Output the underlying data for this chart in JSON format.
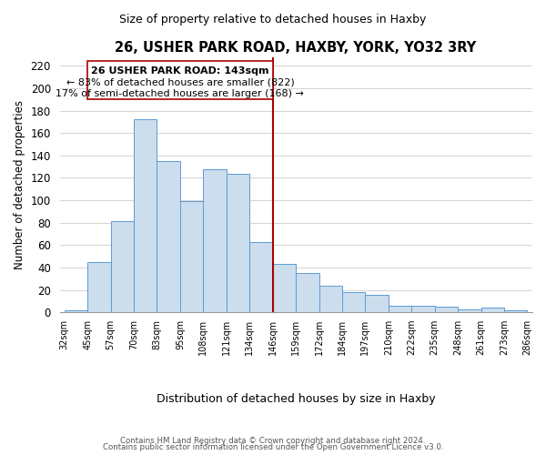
{
  "title": "26, USHER PARK ROAD, HAXBY, YORK, YO32 3RY",
  "subtitle": "Size of property relative to detached houses in Haxby",
  "xlabel": "Distribution of detached houses by size in Haxby",
  "ylabel": "Number of detached properties",
  "bar_labels": [
    "32sqm",
    "45sqm",
    "57sqm",
    "70sqm",
    "83sqm",
    "95sqm",
    "108sqm",
    "121sqm",
    "134sqm",
    "146sqm",
    "159sqm",
    "172sqm",
    "184sqm",
    "197sqm",
    "210sqm",
    "222sqm",
    "235sqm",
    "248sqm",
    "261sqm",
    "273sqm",
    "286sqm"
  ],
  "bar_heights": [
    2,
    45,
    81,
    172,
    135,
    99,
    128,
    124,
    63,
    43,
    35,
    24,
    18,
    16,
    6,
    6,
    5,
    3,
    4,
    2
  ],
  "bar_color": "#ccdded",
  "bar_edge_color": "#5b9bd5",
  "vline_color": "#aa0000",
  "annotation_title": "26 USHER PARK ROAD: 143sqm",
  "annotation_line1": "← 83% of detached houses are smaller (822)",
  "annotation_line2": "17% of semi-detached houses are larger (168) →",
  "annotation_box_edge_color": "#aa0000",
  "ylim": [
    0,
    228
  ],
  "yticks": [
    0,
    20,
    40,
    60,
    80,
    100,
    120,
    140,
    160,
    180,
    200,
    220
  ],
  "footer1": "Contains HM Land Registry data © Crown copyright and database right 2024.",
  "footer2": "Contains public sector information licensed under the Open Government Licence v3.0."
}
